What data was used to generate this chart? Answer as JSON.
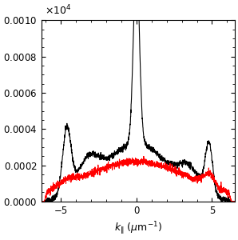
{
  "x_min": -6.3,
  "x_max": 6.5,
  "y_min": 0,
  "y_max": 10,
  "yticks": [
    0,
    2,
    4,
    6,
    8,
    10
  ],
  "xticks": [
    -5,
    0,
    5
  ],
  "black_color": "#000000",
  "red_color": "#ff0000",
  "background": "#ffffff",
  "linewidth": 0.8,
  "figsize": [
    2.98,
    3.0
  ],
  "dpi": 100,
  "noise_seed": 42
}
